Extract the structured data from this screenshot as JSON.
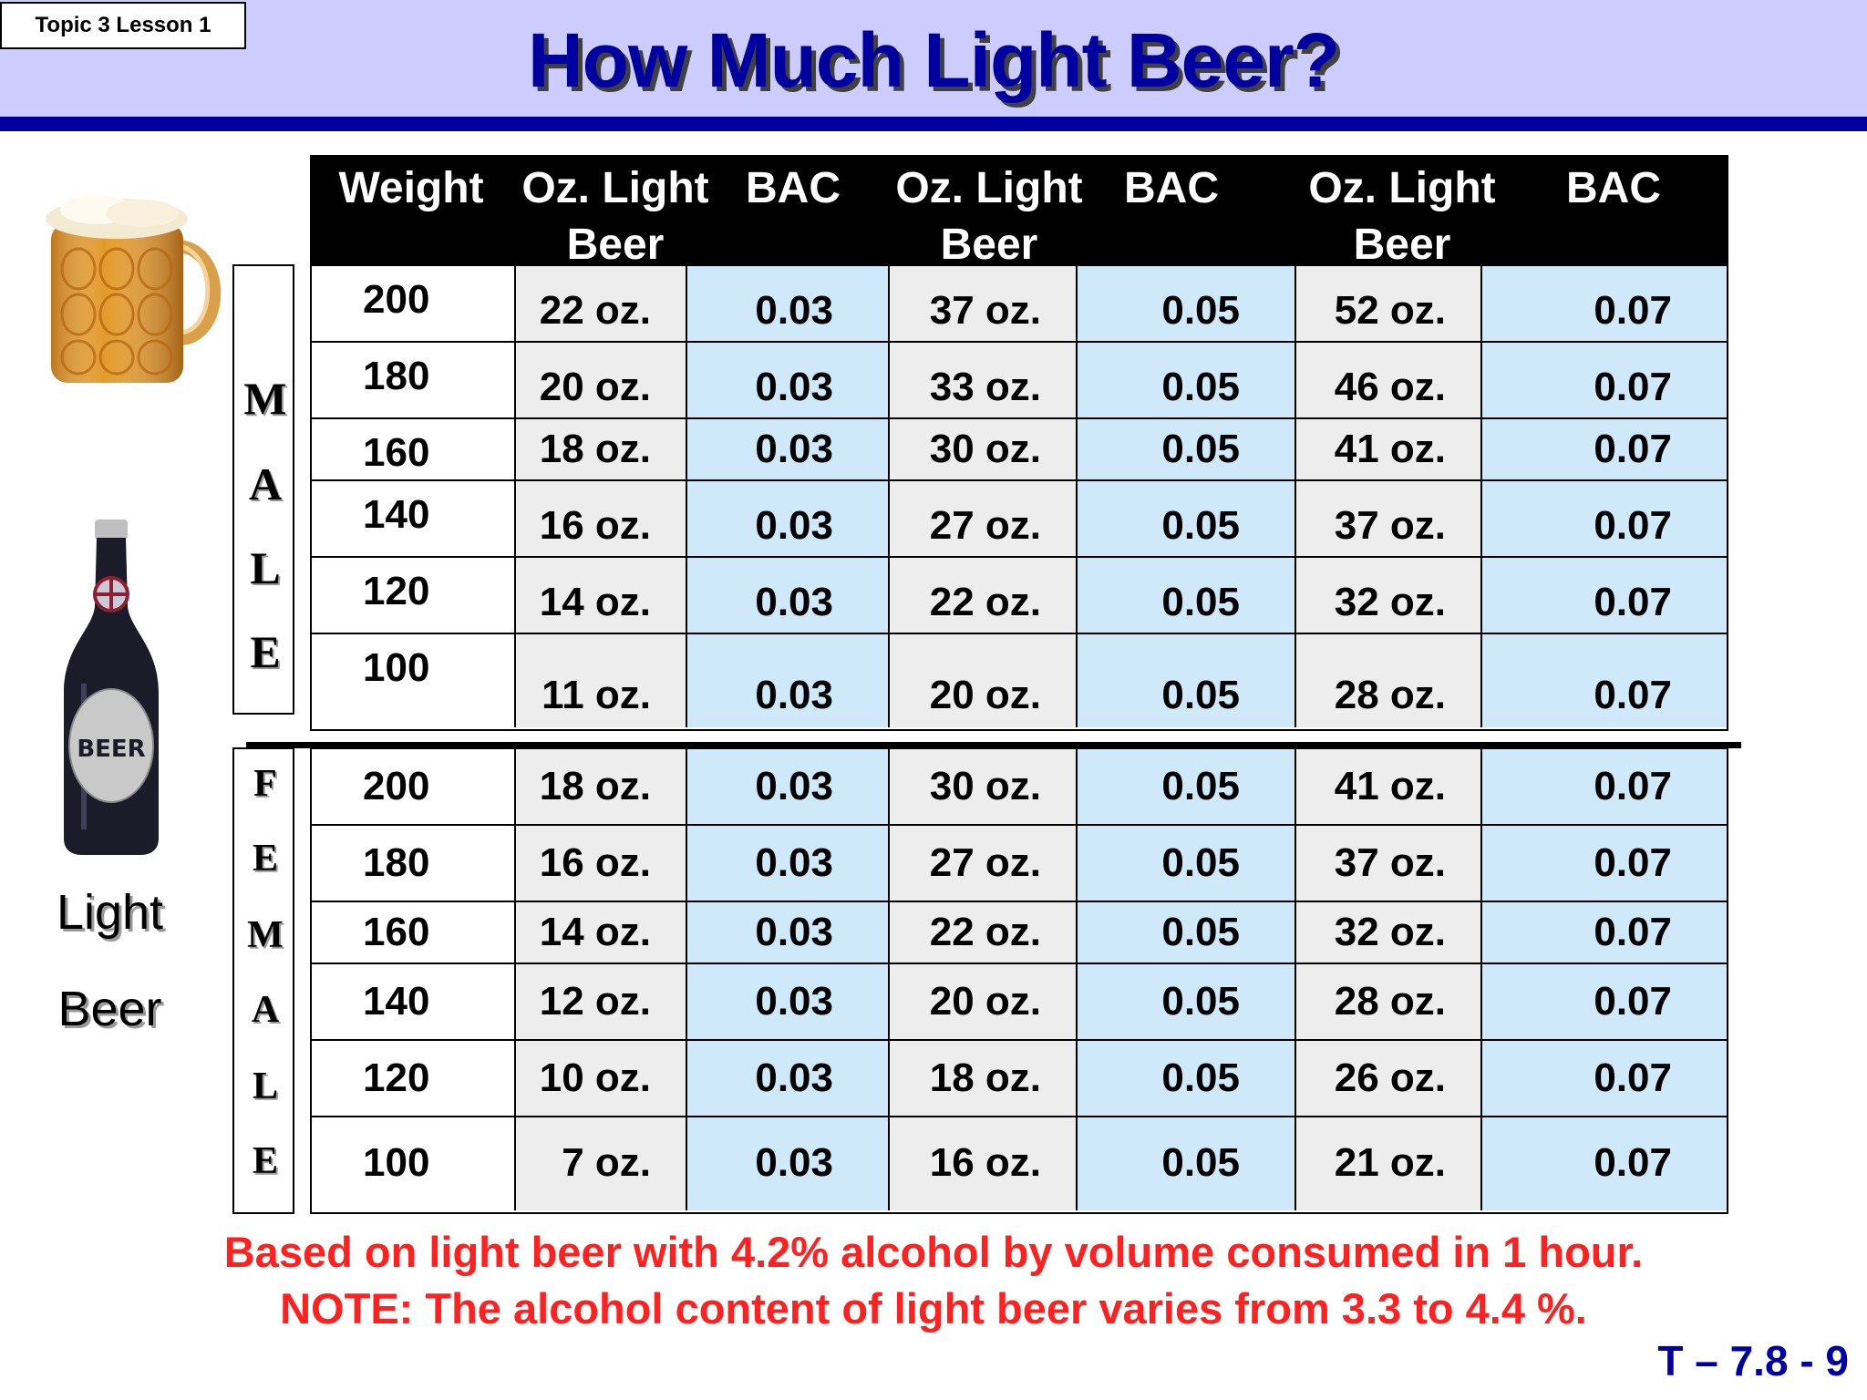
{
  "header": {
    "topic_label": "Topic 3 Lesson 1",
    "title": "How Much Light Beer?"
  },
  "side": {
    "bottle_label_text": "BEER",
    "caption_line1": "Light",
    "caption_line2": "Beer"
  },
  "table": {
    "headers": [
      {
        "line1": "Weight",
        "line2": ""
      },
      {
        "line1": "Oz. Light",
        "line2": "Beer"
      },
      {
        "line1": "BAC",
        "line2": ""
      },
      {
        "line1": "Oz. Light",
        "line2": "Beer"
      },
      {
        "line1": "BAC",
        "line2": ""
      },
      {
        "line1": "Oz. Light",
        "line2": "Beer"
      },
      {
        "line1": "BAC",
        "line2": ""
      }
    ],
    "male_label": [
      "M",
      "A",
      "L",
      "E"
    ],
    "female_label": [
      "F",
      "E",
      "M",
      "A",
      "L",
      "E"
    ],
    "male_rows": [
      [
        "200",
        "22 oz.",
        "0.03",
        "37 oz.",
        "0.05",
        "52 oz.",
        "0.07"
      ],
      [
        "180",
        "20 oz.",
        "0.03",
        "33 oz.",
        "0.05",
        "46 oz.",
        "0.07"
      ],
      [
        "160",
        "18 oz.",
        "0.03",
        "30 oz.",
        "0.05",
        "41 oz.",
        "0.07"
      ],
      [
        "140",
        "16 oz.",
        "0.03",
        "27 oz.",
        "0.05",
        "37 oz.",
        "0.07"
      ],
      [
        "120",
        "14 oz.",
        "0.03",
        "22 oz.",
        "0.05",
        "32 oz.",
        "0.07"
      ],
      [
        "100",
        "11 oz.",
        "0.03",
        "20 oz.",
        "0.05",
        "28 oz.",
        "0.07"
      ]
    ],
    "female_rows": [
      [
        "200",
        "18 oz.",
        "0.03",
        "30 oz.",
        "0.05",
        "41 oz.",
        "0.07"
      ],
      [
        "180",
        "16 oz.",
        "0.03",
        "27 oz.",
        "0.05",
        "37 oz.",
        "0.07"
      ],
      [
        "160",
        "14 oz.",
        "0.03",
        "22 oz.",
        "0.05",
        "32 oz.",
        "0.07"
      ],
      [
        "140",
        "12 oz.",
        "0.03",
        "20 oz.",
        "0.05",
        "28 oz.",
        "0.07"
      ],
      [
        "120",
        "10 oz.",
        "0.03",
        "18 oz.",
        "0.05",
        "26 oz.",
        "0.07"
      ],
      [
        "100",
        "7 oz.",
        "0.03",
        "16 oz.",
        "0.05",
        "21 oz.",
        "0.07"
      ]
    ]
  },
  "footnotes": {
    "line1": "Based on light beer with 4.2% alcohol by volume consumed in 1 hour.",
    "line2": "NOTE:  The alcohol content of light beer varies from 3.3 to 4.4 %."
  },
  "slide_number": "T – 7.8 - 9",
  "colors": {
    "header_band": "#ccccff",
    "title_blue": "#0000a0",
    "bac_column": "#cfe9fb",
    "oz_column": "#ededed",
    "footnote_red": "#ff2020"
  }
}
